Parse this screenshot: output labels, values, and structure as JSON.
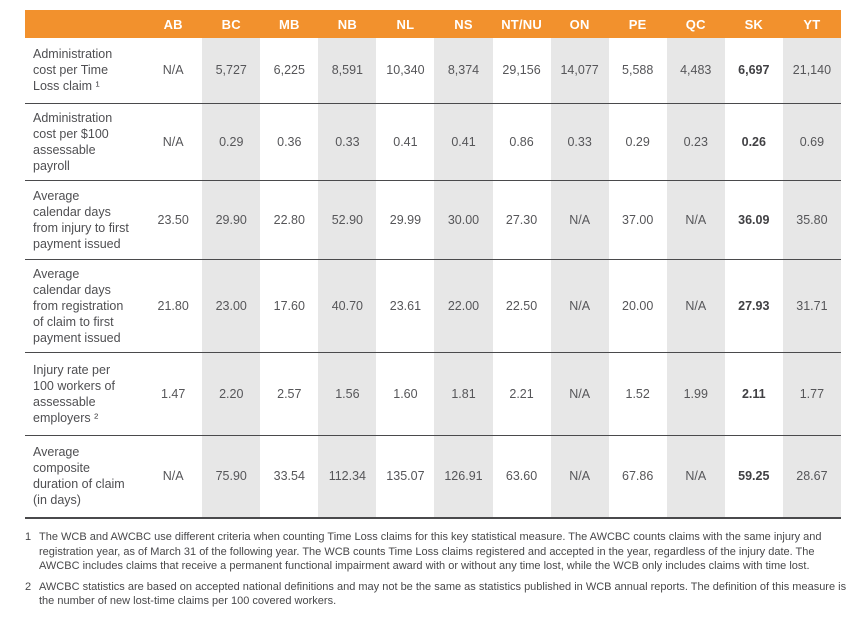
{
  "colors": {
    "header_background": "#F2912D",
    "shaded_column": "#E7E7E7",
    "row_separator": "#4A4A4C",
    "body_text": "#565659"
  },
  "table": {
    "columns": [
      "AB",
      "BC",
      "MB",
      "NB",
      "NL",
      "NS",
      "NT/NU",
      "ON",
      "PE",
      "QC",
      "SK",
      "YT"
    ],
    "shaded_columns": [
      "BC",
      "NB",
      "NS",
      "ON",
      "QC",
      "YT"
    ],
    "bold_column": "SK",
    "rows": [
      {
        "label": "Administration cost per Time Loss claim ¹",
        "values": [
          "N/A",
          "5,727",
          "6,225",
          "8,591",
          "10,340",
          "8,374",
          "29,156",
          "14,077",
          "5,588",
          "4,483",
          "6,697",
          "21,140"
        ]
      },
      {
        "label": "Administration cost per $100 assessable payroll",
        "values": [
          "N/A",
          "0.29",
          "0.36",
          "0.33",
          "0.41",
          "0.41",
          "0.86",
          "0.33",
          "0.29",
          "0.23",
          "0.26",
          "0.69"
        ]
      },
      {
        "label": "Average calendar days from injury to first payment issued",
        "values": [
          "23.50",
          "29.90",
          "22.80",
          "52.90",
          "29.99",
          "30.00",
          "27.30",
          "N/A",
          "37.00",
          "N/A",
          "36.09",
          "35.80"
        ]
      },
      {
        "label": "Average calendar days from registration of claim to first payment issued",
        "values": [
          "21.80",
          "23.00",
          "17.60",
          "40.70",
          "23.61",
          "22.00",
          "22.50",
          "N/A",
          "20.00",
          "N/A",
          "27.93",
          "31.71"
        ]
      },
      {
        "label": "Injury rate per 100 workers of assessable employers ²",
        "values": [
          "1.47",
          "2.20",
          "2.57",
          "1.56",
          "1.60",
          "1.81",
          "2.21",
          "N/A",
          "1.52",
          "1.99",
          "2.11",
          "1.77"
        ]
      },
      {
        "label": "Average composite duration of claim (in days)",
        "values": [
          "N/A",
          "75.90",
          "33.54",
          "112.34",
          "135.07",
          "126.91",
          "63.60",
          "N/A",
          "67.86",
          "N/A",
          "59.25",
          "28.67"
        ]
      }
    ]
  },
  "footnotes": [
    {
      "number": "1",
      "text": "The WCB and AWCBC use different criteria when counting Time Loss claims for this key statistical measure. The AWCBC counts claims with the same injury and registration year, as of March 31 of the following year. The WCB counts Time Loss claims registered and accepted in the year, regardless of the injury date. The AWCBC includes claims that receive a permanent functional impairment award with or without any time lost, while the WCB only includes claims with time lost."
    },
    {
      "number": "2",
      "text": "AWCBC statistics are based on accepted national definitions and may not be the same as statistics published in WCB annual reports. The definition of this measure is the number of new lost-time claims per 100 covered workers."
    }
  ]
}
